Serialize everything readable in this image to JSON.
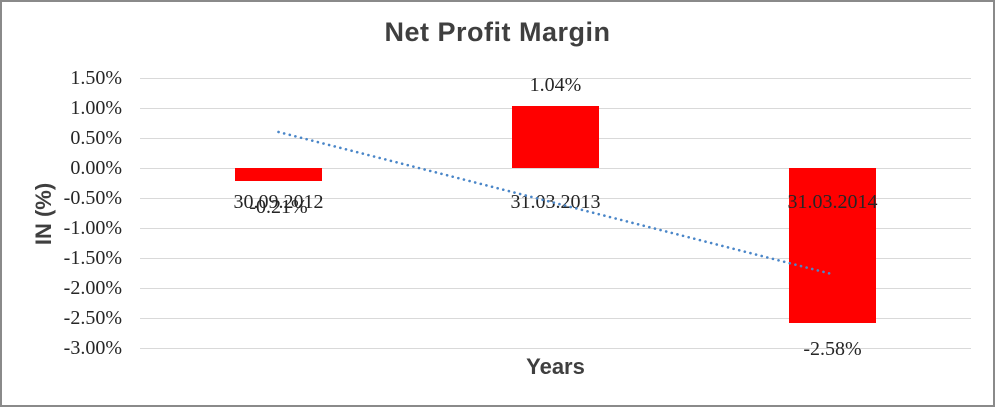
{
  "frame": {
    "background": "#ffffff",
    "border_color": "#8a8a8a"
  },
  "chart_data": {
    "type": "bar",
    "title": "Net Profit Margin",
    "xlabel": "Years",
    "ylabel": "IN (%)",
    "categories": [
      "30.09.2012",
      "31.03.2013",
      "31.03.2014"
    ],
    "values": [
      -0.21,
      1.04,
      -2.58
    ],
    "data_labels": [
      "-0.21%",
      "1.04%",
      "-2.58%"
    ],
    "ylim": [
      -3.0,
      1.5
    ],
    "yticks": [
      {
        "label": "1.50%",
        "value": 1.5
      },
      {
        "label": "1.00%",
        "value": 1.0
      },
      {
        "label": "0.50%",
        "value": 0.5
      },
      {
        "label": "0.00%",
        "value": 0.0
      },
      {
        "label": "-0.50%",
        "value": -0.5
      },
      {
        "label": "-1.00%",
        "value": -1.0
      },
      {
        "label": "-1.50%",
        "value": -1.5
      },
      {
        "label": "-2.00%",
        "value": -2.0
      },
      {
        "label": "-2.50%",
        "value": -2.5
      },
      {
        "label": "-3.00%",
        "value": -3.0
      }
    ],
    "grid": true,
    "legend": false,
    "bar_color": "#ff0000",
    "label_color": "#262626",
    "grid_color": "#d9d9d9",
    "trendline": {
      "style": "dotted",
      "color": "#4a86c8",
      "start_value": 0.6,
      "end_value": -1.77
    }
  }
}
